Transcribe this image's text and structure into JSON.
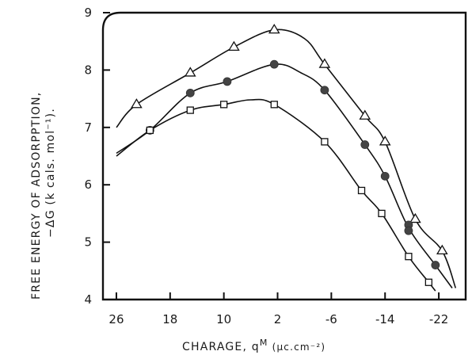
{
  "chart_data": {
    "type": "line",
    "title": "",
    "xlabel": "CHARAGE, q",
    "xlabel_sup": "M",
    "xlabel_unit": " (μc.cm⁻²)",
    "ylabel_line1": "FREE ENERGY OF ADSORPPTION,",
    "ylabel_line2": "−ΔG (k cals. mol⁻¹).",
    "xlim": [
      28,
      -26
    ],
    "ylim": [
      4,
      9
    ],
    "x_reversed": true,
    "xticks": [
      26,
      18,
      10,
      2,
      -6,
      -14,
      -22
    ],
    "xtick_labels": [
      "26",
      "18",
      "10",
      "2",
      "-6",
      "-14",
      "-22"
    ],
    "yticks": [
      4,
      5,
      6,
      7,
      8,
      9
    ],
    "ytick_labels": [
      "4",
      "5",
      "6",
      "7",
      "8",
      "9"
    ],
    "grid": false,
    "series": [
      {
        "marker": "triangle",
        "points": [
          [
            23,
            7.4
          ],
          [
            15,
            7.95
          ],
          [
            8.5,
            8.4
          ],
          [
            2.5,
            8.7
          ],
          [
            -5,
            8.1
          ],
          [
            -11,
            7.2
          ],
          [
            -14,
            6.75
          ],
          [
            -18.5,
            5.4
          ],
          [
            -22.5,
            4.85
          ]
        ],
        "curve": [
          [
            26,
            7.0
          ],
          [
            23,
            7.4
          ],
          [
            15,
            7.95
          ],
          [
            8.5,
            8.4
          ],
          [
            2.5,
            8.7
          ],
          [
            -2,
            8.55
          ],
          [
            -5,
            8.1
          ],
          [
            -11,
            7.2
          ],
          [
            -14,
            6.75
          ],
          [
            -18.5,
            5.4
          ],
          [
            -22.5,
            4.85
          ],
          [
            -24.5,
            4.2
          ]
        ]
      },
      {
        "marker": "filled-circle",
        "points": [
          [
            21,
            6.95
          ],
          [
            15,
            7.6
          ],
          [
            9.5,
            7.8
          ],
          [
            2.5,
            8.1
          ],
          [
            -5,
            7.65
          ],
          [
            -11,
            6.7
          ],
          [
            -14,
            6.15
          ],
          [
            -17.5,
            5.3
          ],
          [
            -17.5,
            5.2
          ],
          [
            -21.5,
            4.6
          ]
        ],
        "curve": [
          [
            26,
            6.55
          ],
          [
            21,
            6.95
          ],
          [
            15,
            7.6
          ],
          [
            9.5,
            7.8
          ],
          [
            2.5,
            8.1
          ],
          [
            -1.5,
            7.95
          ],
          [
            -5,
            7.65
          ],
          [
            -11,
            6.7
          ],
          [
            -14,
            6.15
          ],
          [
            -17.5,
            5.25
          ],
          [
            -21.5,
            4.6
          ],
          [
            -24,
            4.2
          ]
        ]
      },
      {
        "marker": "square",
        "points": [
          [
            21,
            6.95
          ],
          [
            15,
            7.3
          ],
          [
            10,
            7.4
          ],
          [
            2.5,
            7.4
          ],
          [
            -5,
            6.75
          ],
          [
            -10.5,
            5.9
          ],
          [
            -13.5,
            5.5
          ],
          [
            -17.5,
            4.75
          ],
          [
            -20.5,
            4.3
          ]
        ],
        "curve": [
          [
            26,
            6.5
          ],
          [
            21,
            6.95
          ],
          [
            15,
            7.3
          ],
          [
            10,
            7.4
          ],
          [
            6,
            7.48
          ],
          [
            2.5,
            7.4
          ],
          [
            -5,
            6.75
          ],
          [
            -10.5,
            5.9
          ],
          [
            -13.5,
            5.5
          ],
          [
            -17.5,
            4.75
          ],
          [
            -20.5,
            4.3
          ],
          [
            -21.5,
            4.15
          ]
        ]
      }
    ]
  }
}
